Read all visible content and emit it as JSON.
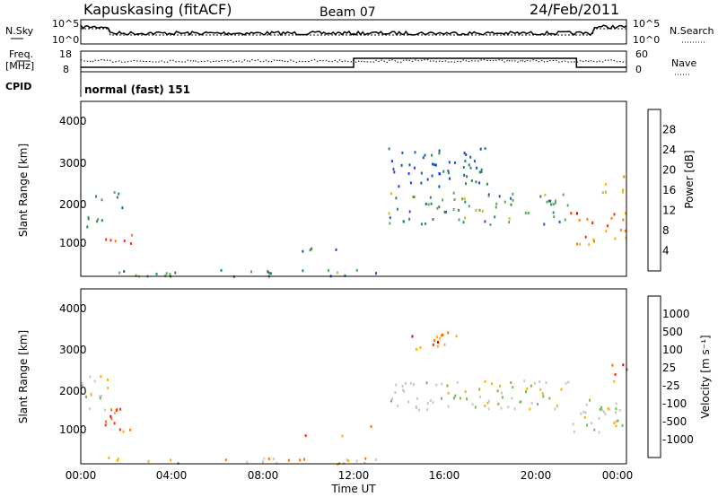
{
  "header": {
    "station": "Kapuskasing (fitACF)",
    "beam": "Beam 07",
    "date": "24/Feb/2011"
  },
  "noise_panel": {
    "left_label": "N.Sky",
    "right_label": "N.Search",
    "left_ticks": [
      "10^5",
      "10^0"
    ],
    "right_ticks": [
      "10^5",
      "10^0"
    ]
  },
  "freq_panel": {
    "left_label_1": "Freq.",
    "left_label_2": "[MHz]",
    "right_label": "Nave",
    "left_ticks": [
      "18",
      "8"
    ],
    "right_ticks": [
      "60",
      "0"
    ]
  },
  "cpid": {
    "label": "CPID",
    "text": "normal (fast) 151"
  },
  "colors": {
    "power_scale": [
      "#1a3cff",
      "#1a5fb4",
      "#2e8b57",
      "#5aa85a",
      "#c8c020",
      "#ffb000",
      "#ff8000",
      "#ff3000",
      "#e00000"
    ],
    "velocity_scale": [
      "#1a3cff",
      "#1a5fb4",
      "#2e8b57",
      "#6cc040",
      "#c8c8c8",
      "#c8c8c8",
      "#ffb000",
      "#ff7000",
      "#ff3000",
      "#e00000"
    ]
  },
  "chart_data": [
    {
      "type": "heatmap",
      "name": "power",
      "ylabel": "Slant Range [km]",
      "colorbar_label": "Power [dB]",
      "colorbar_ticks": [
        "28",
        "24",
        "20",
        "16",
        "12",
        "8",
        "4"
      ],
      "yticks": [
        "4000",
        "3000",
        "2000",
        "1000"
      ],
      "ylim": [
        200,
        4500
      ],
      "xlim_hours": [
        0,
        24
      ],
      "scatter_regions": [
        {
          "t_start": 0.0,
          "t_end": 1.2,
          "r_start": 1400,
          "r_end": 1800,
          "level": 0.3
        },
        {
          "t_start": 1.0,
          "t_end": 2.4,
          "r_start": 900,
          "r_end": 1400,
          "level": 0.9
        },
        {
          "t_start": 0.6,
          "t_end": 1.8,
          "r_start": 1900,
          "r_end": 2300,
          "level": 0.25
        },
        {
          "t_start": 0.2,
          "t_end": 13.0,
          "r_start": 220,
          "r_end": 380,
          "level": 0.3
        },
        {
          "t_start": 9.5,
          "t_end": 12.0,
          "r_start": 840,
          "r_end": 940,
          "level": 0.2
        },
        {
          "t_start": 12.5,
          "t_end": 13.2,
          "r_start": 1050,
          "r_end": 1200,
          "level": 0.2
        },
        {
          "t_start": 13.5,
          "t_end": 21.5,
          "r_start": 1500,
          "r_end": 2300,
          "level": 0.35
        },
        {
          "t_start": 13.5,
          "t_end": 18.0,
          "r_start": 2400,
          "r_end": 3400,
          "level": 0.15
        },
        {
          "t_start": 21.5,
          "t_end": 24.0,
          "r_start": 1000,
          "r_end": 1800,
          "level": 0.75
        },
        {
          "t_start": 22.8,
          "t_end": 24.0,
          "r_start": 2200,
          "r_end": 2700,
          "level": 0.6
        }
      ]
    },
    {
      "type": "heatmap",
      "name": "velocity",
      "ylabel": "Slant Range [km]",
      "colorbar_label": "Velocity [m s⁻¹]",
      "colorbar_ticks": [
        "1000",
        "500",
        "100",
        "25",
        "-25",
        "-100",
        "-500",
        "-1000"
      ],
      "yticks": [
        "4000",
        "3000",
        "2000",
        "1000"
      ],
      "ylim": [
        200,
        4500
      ],
      "xlim_hours": [
        0,
        24
      ],
      "xticks": [
        "00:00",
        "04:00",
        "08:00",
        "12:00",
        "16:00",
        "20:00",
        "00:00"
      ],
      "xlabel": "Time UT",
      "scatter_regions": [
        {
          "t_start": 0.0,
          "t_end": 1.2,
          "r_start": 1400,
          "r_end": 2400,
          "level": 0.5
        },
        {
          "t_start": 1.0,
          "t_end": 2.4,
          "r_start": 900,
          "r_end": 1600,
          "level": 0.75
        },
        {
          "t_start": 0.2,
          "t_end": 13.0,
          "r_start": 220,
          "r_end": 380,
          "level": 0.6
        },
        {
          "t_start": 9.5,
          "t_end": 12.0,
          "r_start": 840,
          "r_end": 940,
          "level": 0.7
        },
        {
          "t_start": 12.5,
          "t_end": 13.2,
          "r_start": 1050,
          "r_end": 1200,
          "level": 0.7
        },
        {
          "t_start": 13.5,
          "t_end": 21.5,
          "r_start": 1500,
          "r_end": 2300,
          "level": 0.5
        },
        {
          "t_start": 14.5,
          "t_end": 16.5,
          "r_start": 3000,
          "r_end": 3500,
          "level": 0.8
        },
        {
          "t_start": 21.5,
          "t_end": 24.0,
          "r_start": 1000,
          "r_end": 1800,
          "level": 0.5
        },
        {
          "t_start": 22.8,
          "t_end": 24.0,
          "r_start": 2200,
          "r_end": 2700,
          "level": 0.75
        }
      ]
    }
  ]
}
